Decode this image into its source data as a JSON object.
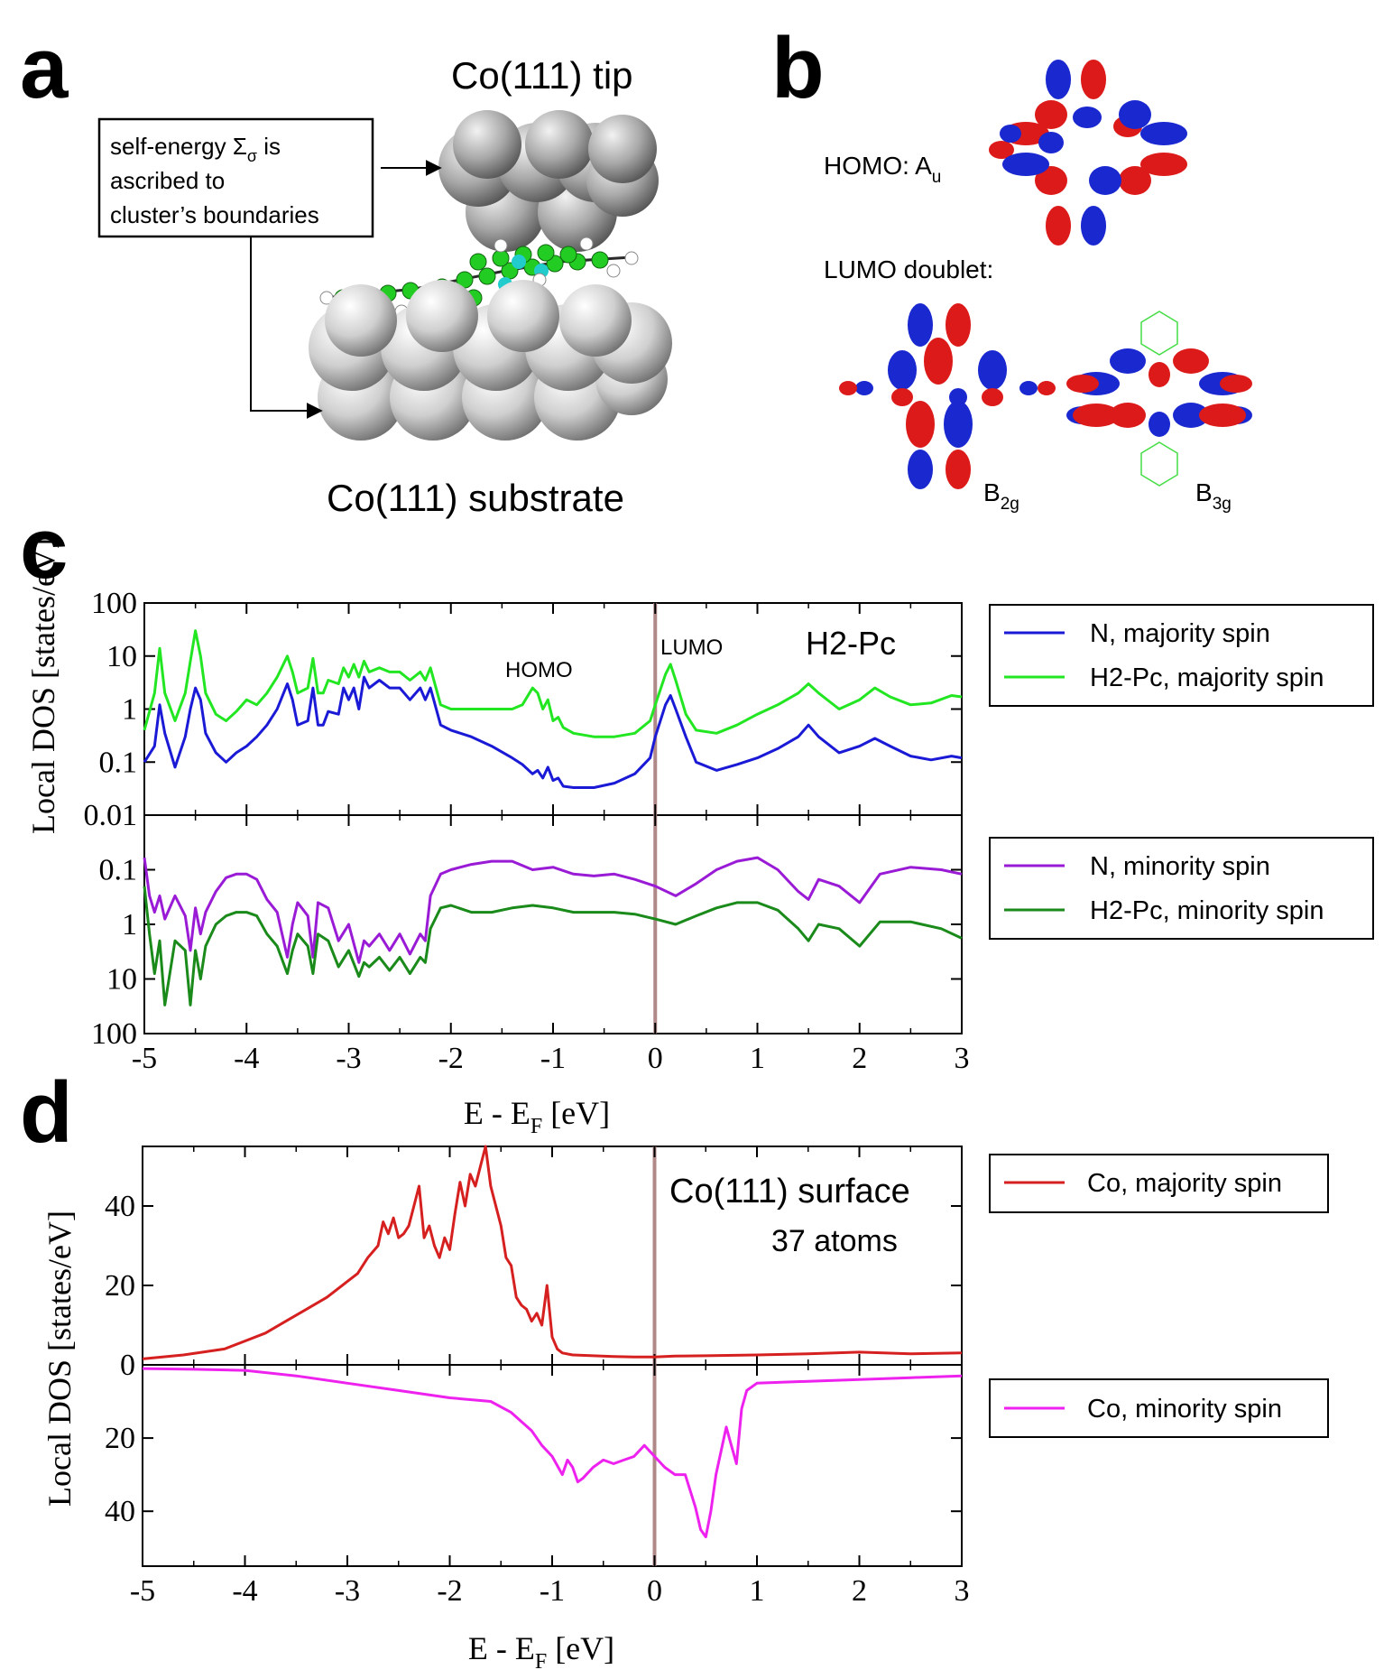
{
  "panels": {
    "a": {
      "letter": "a",
      "tip_label": "Co(111) tip",
      "substrate_label": "Co(111) substrate",
      "note_lines": [
        "self-energy Σ",
        "σ",
        " is",
        "ascribed to",
        "cluster’s boundaries"
      ]
    },
    "b": {
      "letter": "b",
      "homo_label": "HOMO: A",
      "homo_sub": "u",
      "lumo_label": "LUMO doublet:",
      "b2g_main": "B",
      "b2g_sub": "2g",
      "b3g_main": "B",
      "b3g_sub": "3g"
    },
    "c": {
      "letter": "c"
    },
    "d": {
      "letter": "d"
    }
  },
  "colors": {
    "n_major": "#1a1ad6",
    "pc_major": "#22e622",
    "n_minor": "#9a1bd6",
    "pc_minor": "#1a8a1a",
    "co_major": "#d62020",
    "co_minor": "#ee22ee",
    "fermi": "#b08888",
    "orb_red": "#dd1a1a",
    "orb_blue": "#1a28d0"
  },
  "chart_data": [
    {
      "id": "c",
      "type": "line",
      "yscale": "log",
      "ylabel": "Local DOS [states/eV]",
      "xlabel_main": "E - E",
      "xlabel_sub": "F",
      "xlabel_tail": " [eV]",
      "xlim": [
        -5,
        3
      ],
      "x_ticks": [
        "-5",
        "-4",
        "-3",
        "-2",
        "-1",
        "0",
        "1",
        "2",
        "3"
      ],
      "top_ylim": [
        0.01,
        100
      ],
      "top_ticks": [
        "100",
        "10",
        "1",
        "0.1",
        "0.01"
      ],
      "bottom_ylim_inverted": [
        0.01,
        100
      ],
      "bottom_ticks": [
        "0.1",
        "1",
        "10",
        "100"
      ],
      "annotations": {
        "homo": "HOMO",
        "lumo": "LUMO",
        "title": "H2-Pc"
      },
      "legend_top": [
        "N, majority spin",
        "H2-Pc, majority spin"
      ],
      "legend_bottom": [
        "N, minority spin",
        "H2-Pc, minority spin"
      ],
      "series": [
        {
          "name": "N, majority spin",
          "x": [
            -5,
            -4.9,
            -4.85,
            -4.8,
            -4.7,
            -4.6,
            -4.55,
            -4.5,
            -4.45,
            -4.4,
            -4.3,
            -4.2,
            -4.1,
            -4,
            -3.9,
            -3.8,
            -3.7,
            -3.6,
            -3.55,
            -3.5,
            -3.4,
            -3.35,
            -3.3,
            -3.25,
            -3.2,
            -3.1,
            -3.05,
            -3,
            -2.95,
            -2.9,
            -2.85,
            -2.8,
            -2.7,
            -2.6,
            -2.5,
            -2.4,
            -2.3,
            -2.25,
            -2.2,
            -2.1,
            -2,
            -1.8,
            -1.6,
            -1.4,
            -1.3,
            -1.2,
            -1.15,
            -1.1,
            -1.05,
            -1,
            -0.95,
            -0.9,
            -0.8,
            -0.6,
            -0.4,
            -0.2,
            -0.05,
            0,
            0.1,
            0.15,
            0.2,
            0.3,
            0.4,
            0.6,
            0.8,
            1,
            1.2,
            1.4,
            1.5,
            1.6,
            1.8,
            2,
            2.15,
            2.3,
            2.5,
            2.7,
            2.9,
            3
          ],
          "y": [
            0.1,
            0.2,
            1.2,
            0.35,
            0.08,
            0.3,
            1.0,
            2.5,
            1.5,
            0.35,
            0.15,
            0.1,
            0.15,
            0.2,
            0.3,
            0.5,
            1.0,
            3.0,
            1.5,
            0.5,
            0.6,
            2.5,
            0.5,
            0.5,
            0.9,
            0.8,
            2.5,
            1.5,
            2.5,
            1.0,
            4.0,
            2.5,
            3.5,
            2.5,
            2.5,
            1.5,
            2.5,
            1.5,
            2.5,
            0.5,
            0.4,
            0.3,
            0.2,
            0.12,
            0.09,
            0.06,
            0.07,
            0.05,
            0.08,
            0.045,
            0.05,
            0.035,
            0.033,
            0.033,
            0.04,
            0.06,
            0.12,
            0.3,
            1.2,
            1.8,
            1.0,
            0.3,
            0.1,
            0.07,
            0.09,
            0.12,
            0.18,
            0.3,
            0.5,
            0.3,
            0.15,
            0.2,
            0.28,
            0.2,
            0.13,
            0.11,
            0.13,
            0.12
          ]
        },
        {
          "name": "H2-Pc, majority spin",
          "x": [
            -5,
            -4.9,
            -4.85,
            -4.8,
            -4.7,
            -4.6,
            -4.55,
            -4.5,
            -4.45,
            -4.4,
            -4.3,
            -4.2,
            -4.1,
            -4,
            -3.9,
            -3.8,
            -3.7,
            -3.6,
            -3.55,
            -3.5,
            -3.4,
            -3.35,
            -3.3,
            -3.25,
            -3.2,
            -3.1,
            -3.05,
            -3,
            -2.95,
            -2.9,
            -2.85,
            -2.8,
            -2.7,
            -2.6,
            -2.5,
            -2.4,
            -2.3,
            -2.25,
            -2.2,
            -2.1,
            -2,
            -1.8,
            -1.6,
            -1.4,
            -1.3,
            -1.2,
            -1.15,
            -1.1,
            -1.05,
            -1,
            -0.95,
            -0.9,
            -0.8,
            -0.6,
            -0.4,
            -0.2,
            -0.05,
            0,
            0.1,
            0.15,
            0.2,
            0.3,
            0.4,
            0.6,
            0.8,
            1,
            1.2,
            1.4,
            1.5,
            1.6,
            1.8,
            2,
            2.15,
            2.3,
            2.5,
            2.7,
            2.9,
            3
          ],
          "y": [
            0.4,
            2.0,
            14,
            2.0,
            0.6,
            2.0,
            8,
            30,
            10,
            2.0,
            0.8,
            0.6,
            0.9,
            1.5,
            1.2,
            2.0,
            4.0,
            10,
            5.0,
            2.0,
            2.5,
            9.0,
            2.0,
            2.0,
            3.5,
            3.0,
            6.0,
            4.0,
            7.0,
            4.0,
            8.0,
            5.0,
            6.0,
            5.0,
            5.0,
            3.5,
            5.0,
            3.5,
            6.0,
            1.2,
            1.0,
            1.0,
            1.0,
            1.0,
            1.2,
            2.5,
            2.0,
            1.0,
            1.5,
            0.6,
            0.7,
            0.45,
            0.35,
            0.3,
            0.3,
            0.35,
            0.6,
            1.2,
            4.5,
            7.0,
            3.5,
            0.8,
            0.4,
            0.35,
            0.5,
            0.8,
            1.2,
            2.0,
            3.0,
            2.0,
            1.0,
            1.5,
            2.5,
            1.7,
            1.2,
            1.3,
            1.8,
            1.7
          ]
        },
        {
          "name": "N, minority spin",
          "x": [
            -5,
            -4.95,
            -4.9,
            -4.85,
            -4.8,
            -4.7,
            -4.6,
            -4.55,
            -4.5,
            -4.45,
            -4.4,
            -4.3,
            -4.2,
            -4.1,
            -4,
            -3.9,
            -3.8,
            -3.7,
            -3.6,
            -3.55,
            -3.5,
            -3.4,
            -3.35,
            -3.3,
            -3.2,
            -3.1,
            -3,
            -2.9,
            -2.85,
            -2.8,
            -2.7,
            -2.6,
            -2.5,
            -2.4,
            -2.3,
            -2.25,
            -2.2,
            -2.1,
            -2,
            -1.8,
            -1.6,
            -1.4,
            -1.2,
            -1,
            -0.8,
            -0.6,
            -0.4,
            -0.2,
            0,
            0.2,
            0.4,
            0.6,
            0.8,
            1,
            1.2,
            1.4,
            1.5,
            1.6,
            1.8,
            2,
            2.2,
            2.5,
            2.8,
            3
          ],
          "y": [
            0.06,
            0.3,
            0.6,
            0.3,
            0.8,
            0.3,
            0.7,
            3.0,
            0.5,
            1.5,
            0.6,
            0.25,
            0.14,
            0.12,
            0.12,
            0.15,
            0.35,
            0.6,
            4.0,
            1.0,
            0.4,
            0.7,
            4.0,
            0.4,
            0.5,
            2.0,
            1.0,
            5.0,
            2.0,
            2.5,
            1.5,
            3.0,
            1.5,
            3.5,
            1.5,
            2.0,
            0.3,
            0.12,
            0.1,
            0.08,
            0.07,
            0.07,
            0.1,
            0.09,
            0.12,
            0.13,
            0.12,
            0.15,
            0.2,
            0.3,
            0.18,
            0.1,
            0.07,
            0.06,
            0.1,
            0.25,
            0.35,
            0.15,
            0.2,
            0.4,
            0.12,
            0.09,
            0.1,
            0.12
          ]
        },
        {
          "name": "H2-Pc, minority spin",
          "x": [
            -5,
            -4.95,
            -4.9,
            -4.85,
            -4.8,
            -4.7,
            -4.6,
            -4.55,
            -4.5,
            -4.45,
            -4.4,
            -4.3,
            -4.2,
            -4.1,
            -4,
            -3.9,
            -3.8,
            -3.7,
            -3.6,
            -3.55,
            -3.5,
            -3.4,
            -3.35,
            -3.3,
            -3.2,
            -3.1,
            -3,
            -2.9,
            -2.85,
            -2.8,
            -2.7,
            -2.6,
            -2.5,
            -2.4,
            -2.3,
            -2.25,
            -2.2,
            -2.1,
            -2,
            -1.8,
            -1.6,
            -1.4,
            -1.2,
            -1,
            -0.8,
            -0.6,
            -0.4,
            -0.2,
            0,
            0.2,
            0.4,
            0.6,
            0.8,
            1,
            1.2,
            1.4,
            1.5,
            1.6,
            1.8,
            2,
            2.2,
            2.5,
            2.8,
            3
          ],
          "y": [
            0.2,
            1.5,
            8,
            2.0,
            30,
            2.0,
            3.0,
            30,
            3.0,
            10,
            2.5,
            1.0,
            0.7,
            0.6,
            0.6,
            0.7,
            1.5,
            2.5,
            8.0,
            3.0,
            1.5,
            2.5,
            8.0,
            1.5,
            2.0,
            6.0,
            3.0,
            9.0,
            5.0,
            6.0,
            4.0,
            7.0,
            4.0,
            8.0,
            4.0,
            5.0,
            1.2,
            0.5,
            0.45,
            0.6,
            0.6,
            0.5,
            0.45,
            0.5,
            0.6,
            0.6,
            0.6,
            0.65,
            0.8,
            1.0,
            0.7,
            0.5,
            0.4,
            0.4,
            0.55,
            1.2,
            2.0,
            1.0,
            1.2,
            2.5,
            0.9,
            0.9,
            1.2,
            1.8
          ]
        }
      ]
    },
    {
      "id": "d",
      "type": "line",
      "ylabel": "Local DOS [states/eV]",
      "xlabel_main": "E - E",
      "xlabel_sub": "F",
      "xlabel_tail": " [eV]",
      "xlim": [
        -5,
        3
      ],
      "x_ticks": [
        "-5",
        "-4",
        "-3",
        "-2",
        "-1",
        "0",
        "1",
        "2",
        "3"
      ],
      "top_ylim": [
        0,
        55
      ],
      "top_ticks": [
        "40",
        "20",
        "0"
      ],
      "top_tick_values": [
        40,
        20,
        0
      ],
      "bottom_ylim_inverted": [
        0,
        55
      ],
      "bottom_ticks": [
        "20",
        "40"
      ],
      "bottom_tick_values": [
        20,
        40
      ],
      "annotations": {
        "title": "Co(111) surface",
        "subtitle": "37 atoms"
      },
      "legend_top": [
        "Co, majority spin"
      ],
      "legend_bottom": [
        "Co, minority spin"
      ],
      "series": [
        {
          "name": "Co, majority spin",
          "x": [
            -5,
            -4.6,
            -4.2,
            -4,
            -3.8,
            -3.6,
            -3.4,
            -3.2,
            -3,
            -2.9,
            -2.8,
            -2.7,
            -2.65,
            -2.6,
            -2.55,
            -2.5,
            -2.45,
            -2.4,
            -2.35,
            -2.3,
            -2.25,
            -2.2,
            -2.15,
            -2.1,
            -2.05,
            -2,
            -1.95,
            -1.9,
            -1.85,
            -1.8,
            -1.75,
            -1.7,
            -1.65,
            -1.6,
            -1.55,
            -1.5,
            -1.45,
            -1.4,
            -1.35,
            -1.3,
            -1.25,
            -1.2,
            -1.15,
            -1.1,
            -1.05,
            -1,
            -0.95,
            -0.9,
            -0.8,
            -0.6,
            -0.4,
            -0.2,
            0,
            0.2,
            0.5,
            1,
            1.5,
            2,
            2.5,
            3
          ],
          "y": [
            1.5,
            2.5,
            4,
            6,
            8,
            11,
            14,
            17,
            21,
            23,
            27,
            30,
            36,
            33,
            37,
            32,
            33,
            35,
            40,
            45,
            32,
            35,
            30,
            27,
            32,
            29,
            38,
            46,
            40,
            48,
            45,
            50,
            55,
            45,
            40,
            35,
            27,
            25,
            17,
            15,
            14,
            11,
            13,
            10,
            20,
            7,
            4,
            3,
            2.5,
            2.3,
            2.1,
            2.0,
            2.0,
            2.2,
            2.3,
            2.5,
            2.8,
            3.2,
            2.8,
            3.0
          ]
        },
        {
          "name": "Co, minority spin",
          "x": [
            -5,
            -4.5,
            -4,
            -3.5,
            -3,
            -2.5,
            -2,
            -1.6,
            -1.4,
            -1.2,
            -1.1,
            -1.0,
            -0.9,
            -0.85,
            -0.8,
            -0.75,
            -0.7,
            -0.6,
            -0.5,
            -0.4,
            -0.3,
            -0.2,
            -0.1,
            0,
            0.1,
            0.2,
            0.3,
            0.4,
            0.45,
            0.5,
            0.55,
            0.6,
            0.7,
            0.75,
            0.8,
            0.85,
            0.9,
            1,
            1.5,
            2,
            2.5,
            3
          ],
          "y": [
            1,
            1.2,
            1.5,
            3,
            5,
            7,
            9,
            10,
            13,
            18,
            22,
            25,
            30,
            26,
            28,
            32,
            31,
            28,
            26,
            27,
            26,
            25,
            22,
            25,
            28,
            30,
            30,
            39,
            45,
            47,
            40,
            30,
            17,
            22,
            27,
            12,
            7,
            5,
            4.5,
            4,
            3.5,
            3
          ]
        }
      ]
    }
  ]
}
